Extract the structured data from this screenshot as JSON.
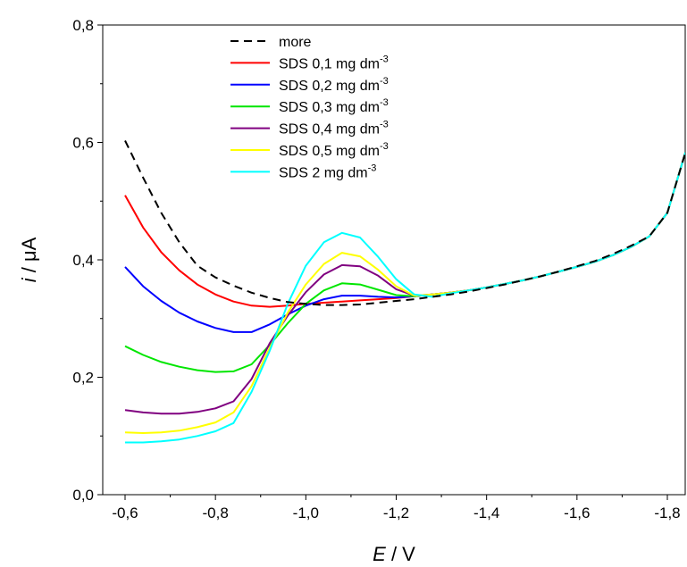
{
  "chart_data": {
    "type": "line",
    "xlabel_symbol": "E",
    "xlabel_unit": " / V",
    "ylabel_symbol": "i",
    "ylabel_unit": " / μA",
    "xlim": [
      -0.6,
      -1.84
    ],
    "ylim": [
      0.0,
      0.8
    ],
    "x_ticks": [
      {
        "value": -0.6,
        "label": "-0,6"
      },
      {
        "value": -0.8,
        "label": "-0,8"
      },
      {
        "value": -1.0,
        "label": "-1,0"
      },
      {
        "value": -1.2,
        "label": "-1,2"
      },
      {
        "value": -1.4,
        "label": "-1,4"
      },
      {
        "value": -1.6,
        "label": "-1,6"
      },
      {
        "value": -1.8,
        "label": "-1,8"
      }
    ],
    "y_ticks": [
      {
        "value": 0.0,
        "label": "0,0"
      },
      {
        "value": 0.2,
        "label": "0,2"
      },
      {
        "value": 0.4,
        "label": "0,4"
      },
      {
        "value": 0.6,
        "label": "0,6"
      },
      {
        "value": 0.8,
        "label": "0,8"
      }
    ],
    "grid": false,
    "legend_position": "top-center",
    "series": [
      {
        "name": "more",
        "label_main": "more",
        "label_sup": "",
        "color": "#000000",
        "dashed": true,
        "points": [
          [
            -0.6,
            0.603
          ],
          [
            -0.64,
            0.54
          ],
          [
            -0.68,
            0.48
          ],
          [
            -0.72,
            0.43
          ],
          [
            -0.76,
            0.39
          ],
          [
            -0.8,
            0.37
          ],
          [
            -0.84,
            0.356
          ],
          [
            -0.88,
            0.344
          ],
          [
            -0.92,
            0.335
          ],
          [
            -0.96,
            0.328
          ],
          [
            -1.0,
            0.325
          ],
          [
            -1.04,
            0.323
          ],
          [
            -1.08,
            0.323
          ],
          [
            -1.12,
            0.324
          ],
          [
            -1.16,
            0.327
          ],
          [
            -1.2,
            0.33
          ],
          [
            -1.24,
            0.333
          ],
          [
            -1.28,
            0.337
          ],
          [
            -1.32,
            0.341
          ],
          [
            -1.36,
            0.346
          ],
          [
            -1.4,
            0.352
          ],
          [
            -1.44,
            0.358
          ],
          [
            -1.48,
            0.365
          ],
          [
            -1.52,
            0.372
          ],
          [
            -1.56,
            0.38
          ],
          [
            -1.6,
            0.389
          ],
          [
            -1.64,
            0.398
          ],
          [
            -1.68,
            0.41
          ],
          [
            -1.72,
            0.424
          ],
          [
            -1.76,
            0.44
          ],
          [
            -1.8,
            0.48
          ],
          [
            -1.84,
            0.583
          ]
        ]
      },
      {
        "name": "SDS 0,1 mg dm-3",
        "label_main": "SDS 0,1 mg dm",
        "label_sup": "-3",
        "color": "#ff0000",
        "dashed": false,
        "points": [
          [
            -0.6,
            0.51
          ],
          [
            -0.64,
            0.455
          ],
          [
            -0.68,
            0.413
          ],
          [
            -0.72,
            0.382
          ],
          [
            -0.76,
            0.358
          ],
          [
            -0.8,
            0.341
          ],
          [
            -0.84,
            0.329
          ],
          [
            -0.88,
            0.322
          ],
          [
            -0.92,
            0.32
          ],
          [
            -0.96,
            0.322
          ],
          [
            -1.0,
            0.325
          ],
          [
            -1.04,
            0.327
          ],
          [
            -1.08,
            0.329
          ],
          [
            -1.12,
            0.331
          ],
          [
            -1.16,
            0.333
          ],
          [
            -1.2,
            0.335
          ],
          [
            -1.24,
            0.338
          ],
          [
            -1.28,
            0.341
          ],
          [
            -1.32,
            0.344
          ],
          [
            -1.36,
            0.348
          ],
          [
            -1.4,
            0.353
          ],
          [
            -1.44,
            0.359
          ],
          [
            -1.48,
            0.365
          ],
          [
            -1.52,
            0.372
          ],
          [
            -1.56,
            0.38
          ],
          [
            -1.6,
            0.388
          ],
          [
            -1.64,
            0.397
          ],
          [
            -1.68,
            0.408
          ],
          [
            -1.72,
            0.422
          ],
          [
            -1.76,
            0.44
          ],
          [
            -1.8,
            0.48
          ],
          [
            -1.84,
            0.583
          ]
        ]
      },
      {
        "name": "SDS 0,2 mg dm-3",
        "label_main": "SDS 0,2 mg dm",
        "label_sup": "-3",
        "color": "#0000ff",
        "dashed": false,
        "points": [
          [
            -0.6,
            0.388
          ],
          [
            -0.64,
            0.355
          ],
          [
            -0.68,
            0.33
          ],
          [
            -0.72,
            0.31
          ],
          [
            -0.76,
            0.295
          ],
          [
            -0.8,
            0.284
          ],
          [
            -0.84,
            0.277
          ],
          [
            -0.88,
            0.277
          ],
          [
            -0.92,
            0.29
          ],
          [
            -0.96,
            0.307
          ],
          [
            -1.0,
            0.322
          ],
          [
            -1.04,
            0.333
          ],
          [
            -1.08,
            0.339
          ],
          [
            -1.12,
            0.339
          ],
          [
            -1.16,
            0.337
          ],
          [
            -1.2,
            0.336
          ],
          [
            -1.24,
            0.338
          ],
          [
            -1.28,
            0.341
          ],
          [
            -1.32,
            0.344
          ],
          [
            -1.36,
            0.348
          ],
          [
            -1.4,
            0.353
          ],
          [
            -1.44,
            0.359
          ],
          [
            -1.48,
            0.365
          ],
          [
            -1.52,
            0.372
          ],
          [
            -1.56,
            0.38
          ],
          [
            -1.6,
            0.388
          ],
          [
            -1.64,
            0.397
          ],
          [
            -1.68,
            0.408
          ],
          [
            -1.72,
            0.422
          ],
          [
            -1.76,
            0.44
          ],
          [
            -1.8,
            0.48
          ],
          [
            -1.84,
            0.583
          ]
        ]
      },
      {
        "name": "SDS 0,3 mg dm-3",
        "label_main": "SDS 0,3 mg dm",
        "label_sup": "-3",
        "color": "#00e600",
        "dashed": false,
        "points": [
          [
            -0.6,
            0.253
          ],
          [
            -0.64,
            0.238
          ],
          [
            -0.68,
            0.226
          ],
          [
            -0.72,
            0.218
          ],
          [
            -0.76,
            0.212
          ],
          [
            -0.8,
            0.209
          ],
          [
            -0.84,
            0.21
          ],
          [
            -0.88,
            0.222
          ],
          [
            -0.92,
            0.255
          ],
          [
            -0.96,
            0.292
          ],
          [
            -1.0,
            0.325
          ],
          [
            -1.04,
            0.348
          ],
          [
            -1.08,
            0.36
          ],
          [
            -1.12,
            0.358
          ],
          [
            -1.16,
            0.349
          ],
          [
            -1.2,
            0.34
          ],
          [
            -1.24,
            0.338
          ],
          [
            -1.28,
            0.341
          ],
          [
            -1.32,
            0.344
          ],
          [
            -1.36,
            0.348
          ],
          [
            -1.4,
            0.353
          ],
          [
            -1.44,
            0.359
          ],
          [
            -1.48,
            0.365
          ],
          [
            -1.52,
            0.372
          ],
          [
            -1.56,
            0.38
          ],
          [
            -1.6,
            0.388
          ],
          [
            -1.64,
            0.397
          ],
          [
            -1.68,
            0.408
          ],
          [
            -1.72,
            0.422
          ],
          [
            -1.76,
            0.44
          ],
          [
            -1.8,
            0.48
          ],
          [
            -1.84,
            0.583
          ]
        ]
      },
      {
        "name": "SDS 0,4 mg dm-3",
        "label_main": "SDS 0,4 mg dm",
        "label_sup": "-3",
        "color": "#800080",
        "dashed": false,
        "points": [
          [
            -0.6,
            0.144
          ],
          [
            -0.64,
            0.14
          ],
          [
            -0.68,
            0.138
          ],
          [
            -0.72,
            0.138
          ],
          [
            -0.76,
            0.141
          ],
          [
            -0.8,
            0.147
          ],
          [
            -0.84,
            0.159
          ],
          [
            -0.88,
            0.197
          ],
          [
            -0.92,
            0.258
          ],
          [
            -0.96,
            0.305
          ],
          [
            -1.0,
            0.345
          ],
          [
            -1.04,
            0.375
          ],
          [
            -1.08,
            0.391
          ],
          [
            -1.12,
            0.389
          ],
          [
            -1.16,
            0.373
          ],
          [
            -1.2,
            0.35
          ],
          [
            -1.24,
            0.339
          ],
          [
            -1.28,
            0.341
          ],
          [
            -1.32,
            0.344
          ],
          [
            -1.36,
            0.348
          ],
          [
            -1.4,
            0.353
          ],
          [
            -1.44,
            0.359
          ],
          [
            -1.48,
            0.365
          ],
          [
            -1.52,
            0.372
          ],
          [
            -1.56,
            0.38
          ],
          [
            -1.6,
            0.388
          ],
          [
            -1.64,
            0.397
          ],
          [
            -1.68,
            0.408
          ],
          [
            -1.72,
            0.422
          ],
          [
            -1.76,
            0.44
          ],
          [
            -1.8,
            0.48
          ],
          [
            -1.84,
            0.583
          ]
        ]
      },
      {
        "name": "SDS 0,5 mg dm-3",
        "label_main": "SDS 0,5 mg dm",
        "label_sup": "-3",
        "color": "#ffff00",
        "dashed": false,
        "points": [
          [
            -0.6,
            0.106
          ],
          [
            -0.64,
            0.105
          ],
          [
            -0.68,
            0.106
          ],
          [
            -0.72,
            0.109
          ],
          [
            -0.76,
            0.115
          ],
          [
            -0.8,
            0.123
          ],
          [
            -0.84,
            0.14
          ],
          [
            -0.88,
            0.185
          ],
          [
            -0.92,
            0.25
          ],
          [
            -0.96,
            0.31
          ],
          [
            -1.0,
            0.358
          ],
          [
            -1.04,
            0.393
          ],
          [
            -1.08,
            0.412
          ],
          [
            -1.12,
            0.406
          ],
          [
            -1.16,
            0.383
          ],
          [
            -1.2,
            0.355
          ],
          [
            -1.24,
            0.339
          ],
          [
            -1.28,
            0.341
          ],
          [
            -1.32,
            0.344
          ],
          [
            -1.36,
            0.348
          ],
          [
            -1.4,
            0.353
          ],
          [
            -1.44,
            0.359
          ],
          [
            -1.48,
            0.365
          ],
          [
            -1.52,
            0.372
          ],
          [
            -1.56,
            0.38
          ],
          [
            -1.6,
            0.388
          ],
          [
            -1.64,
            0.397
          ],
          [
            -1.68,
            0.408
          ],
          [
            -1.72,
            0.422
          ],
          [
            -1.76,
            0.44
          ],
          [
            -1.8,
            0.48
          ],
          [
            -1.84,
            0.583
          ]
        ]
      },
      {
        "name": "SDS 2 mg dm-3",
        "label_main": "SDS 2 mg dm",
        "label_sup": "-3",
        "color": "#00ffff",
        "dashed": false,
        "points": [
          [
            -0.6,
            0.089
          ],
          [
            -0.64,
            0.089
          ],
          [
            -0.68,
            0.091
          ],
          [
            -0.72,
            0.094
          ],
          [
            -0.76,
            0.1
          ],
          [
            -0.8,
            0.108
          ],
          [
            -0.84,
            0.122
          ],
          [
            -0.88,
            0.175
          ],
          [
            -0.92,
            0.245
          ],
          [
            -0.96,
            0.325
          ],
          [
            -1.0,
            0.39
          ],
          [
            -1.04,
            0.43
          ],
          [
            -1.08,
            0.446
          ],
          [
            -1.12,
            0.438
          ],
          [
            -1.16,
            0.405
          ],
          [
            -1.2,
            0.367
          ],
          [
            -1.24,
            0.341
          ],
          [
            -1.28,
            0.337
          ],
          [
            -1.32,
            0.343
          ],
          [
            -1.36,
            0.348
          ],
          [
            -1.4,
            0.353
          ],
          [
            -1.44,
            0.359
          ],
          [
            -1.48,
            0.365
          ],
          [
            -1.52,
            0.372
          ],
          [
            -1.56,
            0.38
          ],
          [
            -1.6,
            0.388
          ],
          [
            -1.64,
            0.397
          ],
          [
            -1.68,
            0.408
          ],
          [
            -1.72,
            0.422
          ],
          [
            -1.76,
            0.44
          ],
          [
            -1.8,
            0.48
          ],
          [
            -1.84,
            0.583
          ]
        ]
      }
    ]
  }
}
